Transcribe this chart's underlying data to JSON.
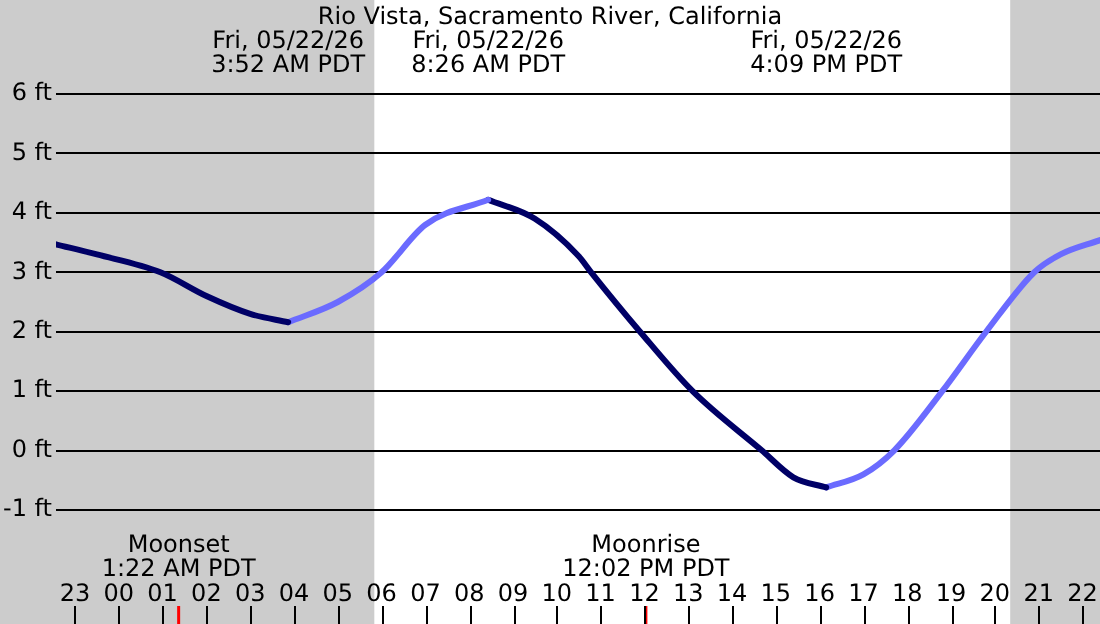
{
  "chart_data": {
    "type": "line",
    "title": "Rio Vista, Sacramento River, California",
    "xlim": [
      "--05-21T22:34",
      "--05-22T22:24"
    ],
    "xticks": [
      {
        "value": "--05-21T23:00",
        "label": "23"
      },
      {
        "value": "--05-22T00:00",
        "label": "00"
      },
      {
        "value": "--05-22T01:00",
        "label": "01"
      },
      {
        "value": "--05-22T02:00",
        "label": "02"
      },
      {
        "value": "--05-22T03:00",
        "label": "03"
      },
      {
        "value": "--05-22T04:00",
        "label": "04"
      },
      {
        "value": "--05-22T05:00",
        "label": "05"
      },
      {
        "value": "--05-22T06:00",
        "label": "06"
      },
      {
        "value": "--05-22T07:00",
        "label": "07"
      },
      {
        "value": "--05-22T08:00",
        "label": "08"
      },
      {
        "value": "--05-22T09:00",
        "label": "09"
      },
      {
        "value": "--05-22T10:00",
        "label": "10"
      },
      {
        "value": "--05-22T11:00",
        "label": "11"
      },
      {
        "value": "--05-22T12:00",
        "label": "12"
      },
      {
        "value": "--05-22T13:00",
        "label": "13"
      },
      {
        "value": "--05-22T14:00",
        "label": "14"
      },
      {
        "value": "--05-22T15:00",
        "label": "15"
      },
      {
        "value": "--05-22T16:00",
        "label": "16"
      },
      {
        "value": "--05-22T17:00",
        "label": "17"
      },
      {
        "value": "--05-22T18:00",
        "label": "18"
      },
      {
        "value": "--05-22T19:00",
        "label": "19"
      },
      {
        "value": "--05-22T20:00",
        "label": "20"
      },
      {
        "value": "--05-22T21:00",
        "label": "21"
      },
      {
        "value": "--05-22T22:00",
        "label": "22"
      }
    ],
    "ylim": [
      -1,
      6
    ],
    "yticks": [
      {
        "value": -1,
        "label": "-1 ft"
      },
      {
        "value": 0,
        "label": "0 ft"
      },
      {
        "value": 1,
        "label": "1 ft"
      },
      {
        "value": 2,
        "label": "2 ft"
      },
      {
        "value": 3,
        "label": "3 ft"
      },
      {
        "value": 4,
        "label": "4 ft"
      },
      {
        "value": 5,
        "label": "5 ft"
      },
      {
        "value": 6,
        "label": "6 ft"
      }
    ],
    "grid": "y",
    "legend": false,
    "marker": "none",
    "line_style": "solid",
    "series": [
      {
        "color": "#000066",
        "x": [
          "--05-21T22:34",
          "--05-21T23:30",
          "--05-22T00:57",
          "--05-22T02:00",
          "--05-22T03:00",
          "--05-22T03:52"
        ],
        "values": [
          3.47,
          3.3,
          3.0,
          2.6,
          2.3,
          2.16
        ]
      },
      {
        "color": "#6b6bff",
        "x": [
          "--05-22T03:52",
          "--05-22T05:00",
          "--05-22T06:00",
          "--05-22T07:00",
          "--05-22T08:26"
        ],
        "values": [
          2.16,
          2.5,
          3.0,
          3.8,
          4.22
        ]
      },
      {
        "color": "#000066",
        "x": [
          "--05-22T08:26",
          "--05-22T09:30",
          "--05-22T10:30",
          "--05-22T10:47",
          "--05-22T11:54",
          "--05-22T13:06",
          "--05-22T14:41",
          "--05-22T15:24",
          "--05-22T16:09"
        ],
        "values": [
          4.22,
          3.9,
          3.27,
          3.0,
          2.0,
          1.0,
          0.0,
          -0.45,
          -0.62
        ]
      },
      {
        "color": "#6b6bff",
        "x": [
          "--05-22T16:09",
          "--05-22T17:00",
          "--05-22T17:42",
          "--05-22T18:48",
          "--05-22T19:48",
          "--05-22T20:54",
          "--05-22T21:30",
          "--05-22T22:24"
        ],
        "values": [
          -0.62,
          -0.4,
          0.0,
          1.0,
          2.0,
          3.0,
          3.3,
          3.54
        ]
      }
    ],
    "bands": [
      {
        "axis": "x",
        "from": "--05-21T22:34",
        "to": "--05-22T05:50",
        "color": "#cccccc"
      },
      {
        "axis": "x",
        "from": "--05-22T20:21",
        "to": "--05-22T22:24",
        "color": "#cccccc"
      }
    ],
    "ref_lines": [
      {
        "axis": "x",
        "value": "--05-22T01:22",
        "label": "Moonset\n1:22 AM PDT",
        "color": "#ff0000"
      },
      {
        "axis": "x",
        "value": "--05-22T12:02",
        "label": "Moonrise\n12:02 PM PDT",
        "color": "#ff0000"
      }
    ],
    "annotations": [
      "Fri, 05/22/26\n3:52 AM PDT",
      "Fri, 05/22/26\n8:26 AM PDT",
      "Fri, 05/22/26\n4:09 PM PDT"
    ]
  }
}
